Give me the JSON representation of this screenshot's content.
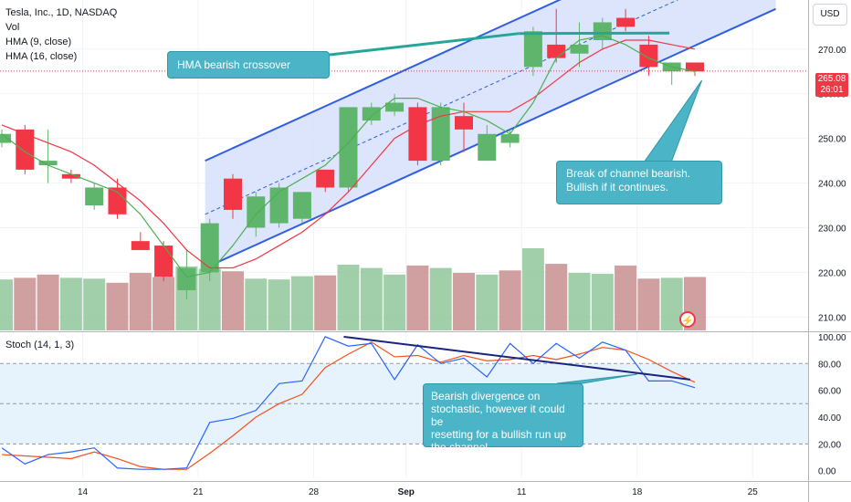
{
  "header": {
    "title": "Tesla, Inc., 1D, NASDAQ",
    "indicators": [
      "Vol",
      "HMA (9, close)",
      "HMA (16, close)"
    ],
    "currency_button": "USD"
  },
  "price_tag": {
    "price": "265.08",
    "countdown": "26:01"
  },
  "annotations": {
    "hma_note": "HMA bearish crossover",
    "channel_note_1": "Break of channel bearish.",
    "channel_note_2": "Bullish if it continues.",
    "stoch_note_1": "Bearish divergence on",
    "stoch_note_2": "stochastic, however it could be",
    "stoch_note_3": "resetting for a bullish run up",
    "stoch_note_4": "the channel."
  },
  "stoch_panel": {
    "title": "Stoch (14, 1, 3)"
  },
  "colors": {
    "up": "#5eb56b",
    "down": "#f23645",
    "vol_up": "#8fc79a",
    "vol_down": "#c88e8e",
    "hma_fast": "#4caf50",
    "hma_slow": "#f23645",
    "channel": "#2f5ee0",
    "channel_fill": "#d4dffb",
    "stoch_k": "#2962ff",
    "stoch_d": "#f4511e",
    "stoch_band": "#e3f2fd",
    "crossover": "#26a69a",
    "divergence": "#1a237e"
  },
  "chart_data": {
    "type": "candlestick",
    "x_tick_labels": [
      "14",
      "21",
      "28",
      "Sep",
      "11",
      "18",
      "25"
    ],
    "x_tick_index": [
      3.5,
      8.5,
      13.5,
      17.5,
      22.5,
      27.5,
      32.5
    ],
    "price_axis": {
      "min": 207,
      "max": 281,
      "ticks": [
        210,
        220,
        230,
        240,
        250,
        260,
        270
      ]
    },
    "candles": [
      {
        "o": 249,
        "h": 252,
        "l": 248,
        "c": 251
      },
      {
        "o": 252,
        "h": 253,
        "l": 242,
        "c": 243
      },
      {
        "o": 244,
        "h": 252,
        "l": 240,
        "c": 245
      },
      {
        "o": 242,
        "h": 243,
        "l": 240,
        "c": 241
      },
      {
        "o": 235,
        "h": 240,
        "l": 234,
        "c": 239
      },
      {
        "o": 239,
        "h": 241,
        "l": 232,
        "c": 233
      },
      {
        "o": 227,
        "h": 229,
        "l": 225,
        "c": 225
      },
      {
        "o": 226,
        "h": 227,
        "l": 218,
        "c": 219
      },
      {
        "o": 216,
        "h": 225,
        "l": 214,
        "c": 221
      },
      {
        "o": 220,
        "h": 232,
        "l": 218,
        "c": 231
      },
      {
        "o": 241,
        "h": 242,
        "l": 232,
        "c": 234
      },
      {
        "o": 230,
        "h": 238,
        "l": 228,
        "c": 237
      },
      {
        "o": 231,
        "h": 240,
        "l": 230,
        "c": 239
      },
      {
        "o": 232,
        "h": 238,
        "l": 231,
        "c": 238
      },
      {
        "o": 243,
        "h": 243,
        "l": 238,
        "c": 239
      },
      {
        "o": 239,
        "h": 257,
        "l": 238,
        "c": 257
      },
      {
        "o": 254,
        "h": 258,
        "l": 253,
        "c": 257
      },
      {
        "o": 256,
        "h": 260,
        "l": 255,
        "c": 258
      },
      {
        "o": 257,
        "h": 258,
        "l": 244,
        "c": 245
      },
      {
        "o": 245,
        "h": 258,
        "l": 244,
        "c": 257
      },
      {
        "o": 255,
        "h": 258,
        "l": 247,
        "c": 252
      },
      {
        "o": 245,
        "h": 253,
        "l": 245,
        "c": 251
      },
      {
        "o": 249,
        "h": 252,
        "l": 248,
        "c": 251
      },
      {
        "o": 266,
        "h": 275,
        "l": 264,
        "c": 274
      },
      {
        "o": 271,
        "h": 279,
        "l": 267,
        "c": 268
      },
      {
        "o": 269,
        "h": 276,
        "l": 266,
        "c": 271
      },
      {
        "o": 272,
        "h": 277,
        "l": 270,
        "c": 276
      },
      {
        "o": 277,
        "h": 279,
        "l": 274,
        "c": 275
      },
      {
        "o": 271,
        "h": 273,
        "l": 264,
        "c": 266
      },
      {
        "o": 265,
        "h": 267,
        "l": 262,
        "c": 267
      },
      {
        "o": 267,
        "h": 267,
        "l": 264,
        "c": 265
      }
    ],
    "hma_9": [
      251,
      247,
      244,
      242,
      240,
      238,
      233,
      226,
      219,
      220,
      226,
      233,
      238,
      241,
      244,
      249,
      255,
      259,
      259,
      257,
      256,
      254,
      251,
      258,
      268,
      272,
      273,
      271,
      268,
      266,
      265
    ],
    "hma_16": [
      253,
      251,
      249,
      247,
      244,
      240,
      236,
      231,
      225,
      221,
      221,
      223,
      226,
      229,
      233,
      238,
      244,
      250,
      253,
      255,
      256,
      256,
      256,
      259,
      263,
      267,
      270,
      272,
      272,
      271,
      270
    ],
    "volume": [
      {
        "v": 0.62,
        "up": true
      },
      {
        "v": 0.64,
        "up": false
      },
      {
        "v": 0.68,
        "up": false
      },
      {
        "v": 0.64,
        "up": true
      },
      {
        "v": 0.63,
        "up": true
      },
      {
        "v": 0.58,
        "up": false
      },
      {
        "v": 0.7,
        "up": false
      },
      {
        "v": 0.65,
        "up": false
      },
      {
        "v": 0.78,
        "up": true
      },
      {
        "v": 0.75,
        "up": true
      },
      {
        "v": 0.72,
        "up": false
      },
      {
        "v": 0.63,
        "up": true
      },
      {
        "v": 0.62,
        "up": true
      },
      {
        "v": 0.66,
        "up": true
      },
      {
        "v": 0.67,
        "up": false
      },
      {
        "v": 0.8,
        "up": true
      },
      {
        "v": 0.76,
        "up": true
      },
      {
        "v": 0.68,
        "up": true
      },
      {
        "v": 0.79,
        "up": false
      },
      {
        "v": 0.76,
        "up": true
      },
      {
        "v": 0.7,
        "up": false
      },
      {
        "v": 0.68,
        "up": true
      },
      {
        "v": 0.73,
        "up": false
      },
      {
        "v": 1.0,
        "up": true
      },
      {
        "v": 0.81,
        "up": false
      },
      {
        "v": 0.7,
        "up": true
      },
      {
        "v": 0.69,
        "up": true
      },
      {
        "v": 0.79,
        "up": false
      },
      {
        "v": 0.63,
        "up": false
      },
      {
        "v": 0.64,
        "up": true
      },
      {
        "v": 0.65,
        "up": false
      }
    ],
    "stoch_axis": {
      "min": -5,
      "max": 102,
      "ticks": [
        0,
        20,
        40,
        60,
        80,
        100
      ]
    },
    "stoch_k": [
      17,
      5,
      12,
      14,
      17,
      2,
      1,
      1,
      2,
      36,
      39,
      45,
      65,
      67,
      100,
      93,
      95,
      68,
      94,
      80,
      84,
      70,
      95,
      80,
      95,
      84,
      96,
      90,
      67,
      67,
      62
    ],
    "stoch_d": [
      12,
      11,
      10,
      9,
      14,
      9,
      3,
      1,
      1,
      13,
      26,
      40,
      50,
      57,
      77,
      87,
      96,
      85,
      86,
      81,
      86,
      82,
      83,
      86,
      83,
      87,
      92,
      90,
      83,
      74,
      66
    ]
  }
}
